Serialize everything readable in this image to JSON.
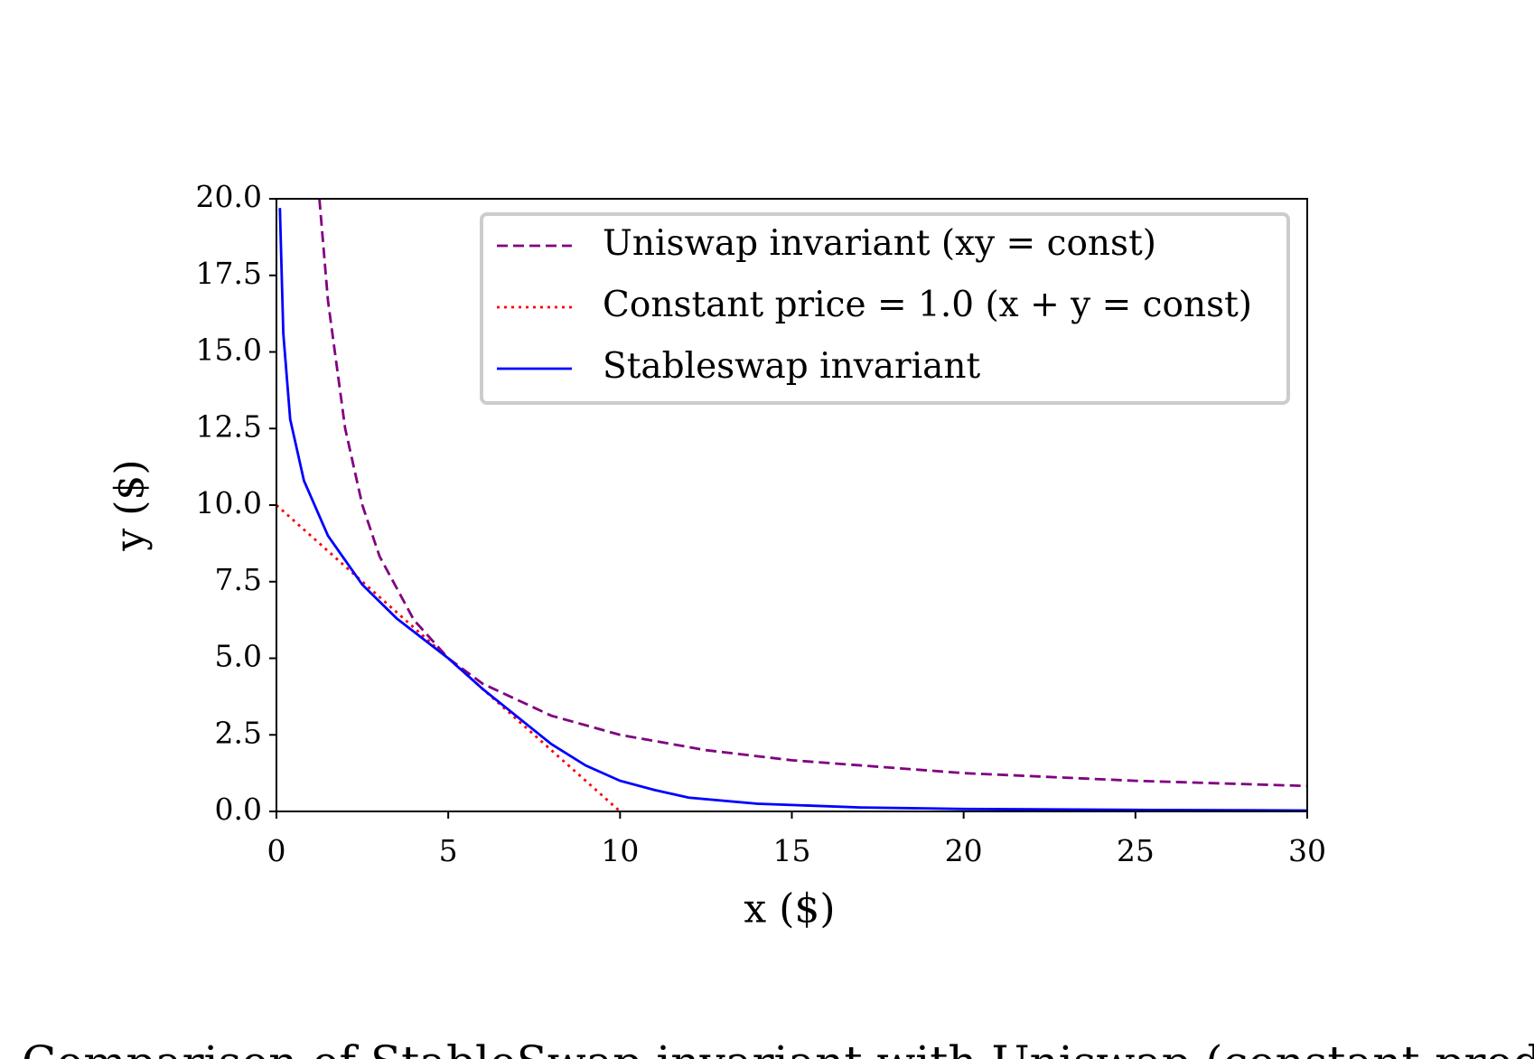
{
  "chart_data": {
    "type": "line",
    "xlabel": "x ($)",
    "ylabel": "y ($)",
    "xlim": [
      0,
      30
    ],
    "ylim": [
      0,
      20
    ],
    "xticks": [
      0,
      5,
      10,
      15,
      20,
      25,
      30
    ],
    "yticks": [
      {
        "value": 0,
        "label": "0.0"
      },
      2.5,
      {
        "value": 5,
        "label": "5.0"
      },
      7.5,
      {
        "value": 10,
        "label": "10.0"
      },
      12.5,
      {
        "value": 15,
        "label": "15.0"
      },
      17.5,
      {
        "value": 20,
        "label": "20.0"
      }
    ],
    "grid": false,
    "legend": "upper right",
    "series": [
      {
        "name": "Uniswap invariant (xy = const)",
        "color": "purple",
        "linestyle": "dashed",
        "x": [
          1.25,
          1.5,
          2,
          2.5,
          3,
          4,
          5,
          6,
          8,
          10,
          12.5,
          15,
          20,
          25,
          30
        ],
        "values": [
          20,
          16.67,
          12.5,
          10,
          8.33,
          6.25,
          5,
          4.17,
          3.125,
          2.5,
          2,
          1.67,
          1.25,
          1,
          0.83
        ]
      },
      {
        "name": "Constant price = 1.0 (x + y = const)",
        "color": "red",
        "linestyle": "dotted",
        "x": [
          0,
          10
        ],
        "values": [
          10,
          0
        ]
      },
      {
        "name": "Stableswap invariant",
        "color": "blue",
        "linestyle": "solid",
        "x": [
          0.1,
          0.2,
          0.4,
          0.8,
          1.5,
          2.5,
          3.5,
          5,
          6,
          7,
          8,
          9,
          10,
          11,
          12,
          14,
          17,
          20,
          25,
          30
        ],
        "values": [
          19.7,
          15.6,
          12.8,
          10.8,
          9.0,
          7.4,
          6.3,
          5.0,
          4.0,
          3.1,
          2.2,
          1.5,
          1.0,
          0.7,
          0.45,
          0.25,
          0.13,
          0.08,
          0.05,
          0.03
        ]
      }
    ]
  },
  "caption": "Comparison of StableSwap invariant with Uniswap (constant-product"
}
